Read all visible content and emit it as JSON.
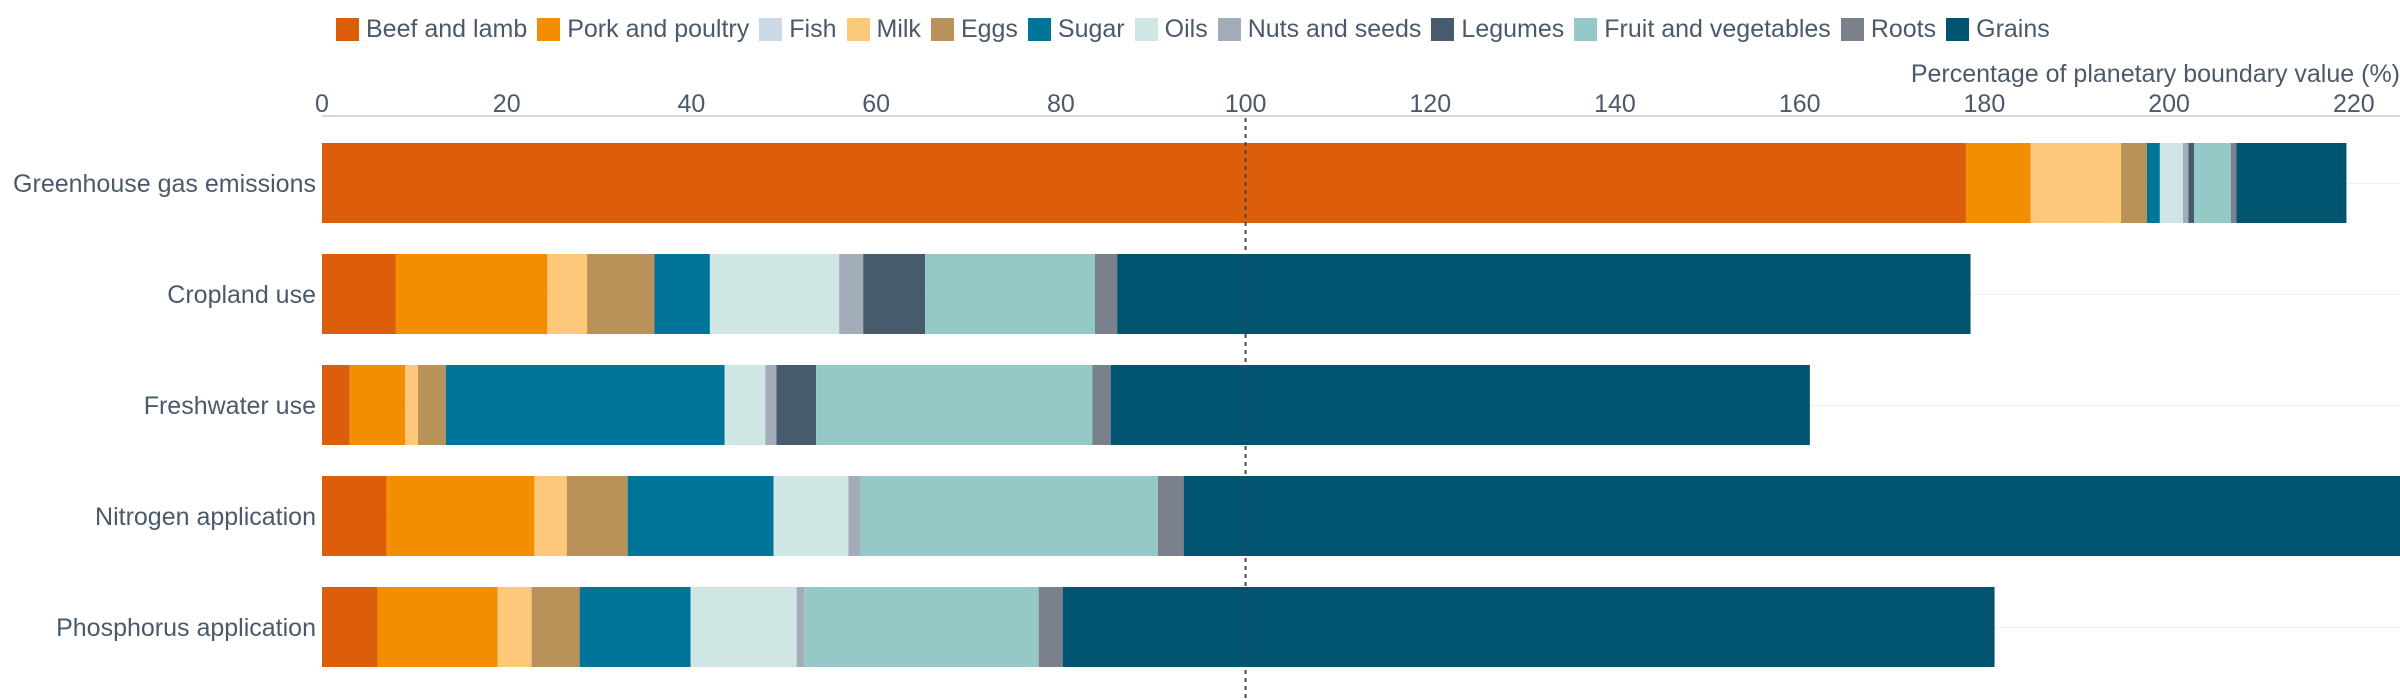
{
  "chart_data": {
    "type": "bar",
    "orientation": "horizontal",
    "stacked": true,
    "xlabel": "Percentage of planetary boundary value (%)",
    "xlim": [
      0,
      225
    ],
    "xticks": [
      0,
      20,
      40,
      60,
      80,
      100,
      120,
      140,
      160,
      180,
      200,
      220
    ],
    "reference_line": 100,
    "legend_position": "top",
    "categories": [
      "Greenhouse gas emissions",
      "Cropland use",
      "Freshwater use",
      "Nitrogen application",
      "Phosphorus application"
    ],
    "series": [
      {
        "name": "Beef and lamb",
        "color": "#dd5e0a",
        "values": [
          178,
          8,
          3,
          7,
          6
        ]
      },
      {
        "name": "Pork and poultry",
        "color": "#f28e00",
        "values": [
          7,
          16.4,
          6,
          16,
          13
        ]
      },
      {
        "name": "Fish",
        "color": "#cbd8e6",
        "values": [
          0,
          0,
          0,
          0,
          0
        ]
      },
      {
        "name": "Milk",
        "color": "#fdc879",
        "values": [
          9.8,
          4.3,
          1.4,
          3.5,
          3.7
        ]
      },
      {
        "name": "Eggs",
        "color": "#b89258",
        "values": [
          2.8,
          7.3,
          3,
          6.6,
          5.2
        ]
      },
      {
        "name": "Sugar",
        "color": "#007599",
        "values": [
          1.4,
          6,
          30.2,
          15.8,
          12
        ]
      },
      {
        "name": "Oils",
        "color": "#d0e6e5",
        "values": [
          2.5,
          14,
          4.4,
          8.1,
          11.5
        ]
      },
      {
        "name": "Nuts and seeds",
        "color": "#a3adb9",
        "values": [
          0.6,
          2.6,
          1.2,
          1.3,
          0.8
        ]
      },
      {
        "name": "Legumes",
        "color": "#475b6d",
        "values": [
          0.6,
          6.7,
          4.3,
          0,
          0
        ]
      },
      {
        "name": "Fruit and vegetables",
        "color": "#95c9c8",
        "values": [
          4,
          18.4,
          29.9,
          32.2,
          25.4
        ]
      },
      {
        "name": "Roots",
        "color": "#7b818b",
        "values": [
          0.6,
          2.4,
          2,
          2.8,
          2.6
        ]
      },
      {
        "name": "Grains",
        "color": "#005470",
        "values": [
          11.9,
          92.4,
          75.7,
          132.2,
          100.9
        ]
      }
    ]
  }
}
